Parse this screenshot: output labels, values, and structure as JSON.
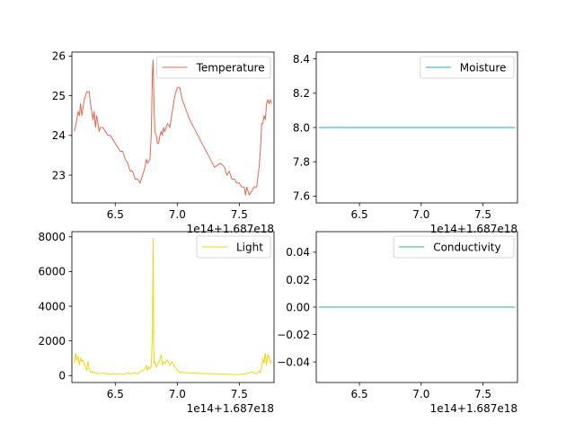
{
  "figure": {
    "background": "#ffffff",
    "axes_color": "#000000"
  },
  "chart_data": [
    {
      "type": "line",
      "title": "",
      "xlabel": "",
      "ylabel": "",
      "offset_text": "1e14+1.687e18",
      "xlim": [
        6.15,
        7.78
      ],
      "ylim": [
        22.3,
        26.1
      ],
      "xticks": [
        6.5,
        7.0,
        7.5
      ],
      "xtick_labels": [
        "6.5",
        "7.0",
        "7.5"
      ],
      "yticks": [
        23,
        24,
        25,
        26
      ],
      "ytick_labels": [
        "23",
        "24",
        "25",
        "26"
      ],
      "grid": false,
      "legend": {
        "position": "upper right"
      },
      "series": [
        {
          "name": "Temperature",
          "color": "#f0644a",
          "x": [
            6.17,
            6.19,
            6.2,
            6.21,
            6.22,
            6.23,
            6.24,
            6.25,
            6.27,
            6.28,
            6.29,
            6.3,
            6.31,
            6.32,
            6.33,
            6.34,
            6.35,
            6.36,
            6.37,
            6.38,
            6.4,
            6.42,
            6.44,
            6.46,
            6.48,
            6.5,
            6.52,
            6.54,
            6.56,
            6.58,
            6.6,
            6.62,
            6.64,
            6.66,
            6.68,
            6.7,
            6.71,
            6.72,
            6.73,
            6.74,
            6.75,
            6.76,
            6.78,
            6.79,
            6.8,
            6.805,
            6.81,
            6.815,
            6.82,
            6.83,
            6.84,
            6.85,
            6.86,
            6.87,
            6.88,
            6.89,
            6.9,
            6.92,
            6.94,
            6.96,
            6.98,
            7.0,
            7.02,
            7.04,
            7.1,
            7.2,
            7.3,
            7.35,
            7.38,
            7.4,
            7.42,
            7.44,
            7.46,
            7.48,
            7.5,
            7.52,
            7.54,
            7.55,
            7.56,
            7.58,
            7.6,
            7.62,
            7.64,
            7.66,
            7.67,
            7.68,
            7.69,
            7.7,
            7.71,
            7.72,
            7.73,
            7.74,
            7.75,
            7.76
          ],
          "y": [
            24.1,
            24.4,
            24.6,
            24.5,
            24.8,
            24.5,
            24.7,
            24.9,
            25.1,
            25.1,
            25.1,
            24.8,
            24.6,
            24.4,
            24.6,
            24.2,
            24.5,
            24.3,
            24.1,
            24.2,
            24.2,
            24.1,
            24.0,
            24.0,
            23.9,
            23.8,
            23.7,
            23.6,
            23.6,
            23.4,
            23.3,
            23.1,
            23.1,
            22.9,
            22.9,
            22.8,
            22.9,
            23.0,
            23.1,
            23.2,
            23.4,
            23.3,
            23.4,
            24.0,
            25.6,
            25.9,
            25.2,
            24.5,
            24.1,
            24.0,
            23.8,
            23.8,
            24.0,
            24.1,
            24.0,
            24.2,
            24.1,
            24.3,
            24.2,
            24.6,
            25.0,
            25.2,
            25.2,
            24.9,
            24.4,
            23.8,
            23.2,
            23.3,
            23.2,
            23.0,
            23.1,
            22.9,
            22.9,
            22.8,
            22.8,
            22.7,
            22.7,
            22.5,
            22.7,
            22.5,
            22.6,
            22.7,
            22.7,
            23.2,
            23.6,
            24.3,
            24.3,
            24.5,
            24.4,
            24.8,
            24.9,
            24.8,
            24.9,
            24.8
          ]
        }
      ]
    },
    {
      "type": "line",
      "title": "",
      "xlabel": "",
      "ylabel": "",
      "offset_text": "1e14+1.687e18",
      "xlim": [
        6.15,
        7.78
      ],
      "ylim": [
        7.56,
        8.44
      ],
      "xticks": [
        6.5,
        7.0,
        7.5
      ],
      "xtick_labels": [
        "6.5",
        "7.0",
        "7.5"
      ],
      "yticks": [
        7.6,
        7.8,
        8.0,
        8.2,
        8.4
      ],
      "ytick_labels": [
        "7.6",
        "7.8",
        "8.0",
        "8.2",
        "8.4"
      ],
      "grid": false,
      "legend": {
        "position": "upper right"
      },
      "series": [
        {
          "name": "Moisture",
          "color": "#1aa9e6",
          "x": [
            6.17,
            7.76
          ],
          "y": [
            8.0,
            8.0
          ]
        }
      ]
    },
    {
      "type": "line",
      "title": "",
      "xlabel": "",
      "ylabel": "",
      "offset_text": "1e14+1.687e18",
      "xlim": [
        6.15,
        7.78
      ],
      "ylim": [
        -400,
        8300
      ],
      "xticks": [
        6.5,
        7.0,
        7.5
      ],
      "xtick_labels": [
        "6.5",
        "7.0",
        "7.5"
      ],
      "yticks": [
        0,
        2000,
        4000,
        6000,
        8000
      ],
      "ytick_labels": [
        "0",
        "2000",
        "4000",
        "6000",
        "8000"
      ],
      "grid": false,
      "legend": {
        "position": "upper right"
      },
      "series": [
        {
          "name": "Light",
          "color": "#f2d50f",
          "x": [
            6.17,
            6.18,
            6.19,
            6.2,
            6.21,
            6.22,
            6.23,
            6.24,
            6.25,
            6.26,
            6.27,
            6.28,
            6.29,
            6.3,
            6.31,
            6.32,
            6.33,
            6.34,
            6.36,
            6.38,
            6.4,
            6.42,
            6.44,
            6.46,
            6.48,
            6.5,
            6.52,
            6.54,
            6.56,
            6.58,
            6.6,
            6.62,
            6.64,
            6.66,
            6.68,
            6.7,
            6.72,
            6.74,
            6.75,
            6.76,
            6.77,
            6.78,
            6.79,
            6.8,
            6.805,
            6.81,
            6.815,
            6.82,
            6.83,
            6.84,
            6.85,
            6.86,
            6.87,
            6.88,
            6.89,
            6.9,
            6.92,
            6.94,
            6.96,
            6.98,
            7.0,
            7.02,
            7.04,
            7.1,
            7.2,
            7.3,
            7.4,
            7.5,
            7.55,
            7.6,
            7.62,
            7.64,
            7.65,
            7.66,
            7.67,
            7.68,
            7.69,
            7.7,
            7.71,
            7.72,
            7.73,
            7.74,
            7.75,
            7.76
          ],
          "y": [
            700,
            1300,
            900,
            1100,
            600,
            1000,
            800,
            900,
            700,
            500,
            300,
            800,
            400,
            200,
            250,
            150,
            200,
            150,
            120,
            100,
            150,
            120,
            100,
            80,
            120,
            100,
            90,
            110,
            80,
            100,
            150,
            100,
            120,
            150,
            100,
            200,
            300,
            400,
            600,
            300,
            500,
            400,
            500,
            2500,
            7900,
            1500,
            700,
            800,
            500,
            600,
            800,
            900,
            1200,
            600,
            800,
            700,
            900,
            600,
            800,
            500,
            300,
            200,
            180,
            150,
            120,
            100,
            80,
            60,
            100,
            200,
            150,
            100,
            200,
            250,
            150,
            500,
            1000,
            700,
            1300,
            600,
            1200,
            1100,
            700,
            900
          ]
        }
      ]
    },
    {
      "type": "line",
      "title": "",
      "xlabel": "",
      "ylabel": "",
      "offset_text": "1e14+1.687e18",
      "xlim": [
        6.15,
        7.78
      ],
      "ylim": [
        -0.055,
        0.055
      ],
      "xticks": [
        6.5,
        7.0,
        7.5
      ],
      "xtick_labels": [
        "6.5",
        "7.0",
        "7.5"
      ],
      "yticks": [
        -0.04,
        -0.02,
        0.0,
        0.02,
        0.04
      ],
      "ytick_labels": [
        "−0.04",
        "−0.02",
        "0.00",
        "0.02",
        "0.04"
      ],
      "grid": false,
      "legend": {
        "position": "upper right"
      },
      "series": [
        {
          "name": "Conductivity",
          "color": "#2db573",
          "x": [
            6.17,
            7.76
          ],
          "y": [
            0.0,
            0.0
          ]
        }
      ]
    }
  ]
}
